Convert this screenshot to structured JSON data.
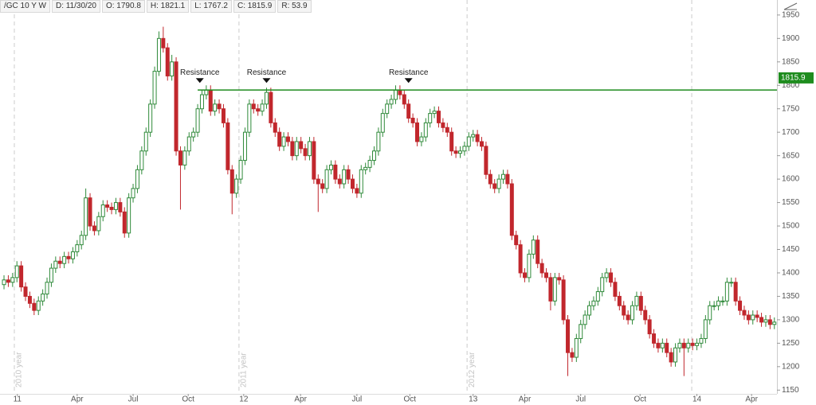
{
  "header": [
    "/GC 10 Y W",
    "D: 11/30/20",
    "O: 1790.8",
    "H: 1821.1",
    "L: 1767.2",
    "C: 1815.9",
    "R: 53.9"
  ],
  "chart_data": {
    "type": "candlestick",
    "up_color": "#2f8a3a",
    "down_color": "#c1272d",
    "ylim": [
      1142,
      1982
    ],
    "yticks": [
      1150,
      1200,
      1250,
      1300,
      1350,
      1400,
      1450,
      1500,
      1550,
      1600,
      1650,
      1700,
      1750,
      1800,
      1850,
      1900,
      1950
    ],
    "xlim": [
      -0.93,
      179.6
    ],
    "xticks": [
      {
        "value": 3.1,
        "label": "11"
      },
      {
        "value": 17,
        "label": "Apr"
      },
      {
        "value": 30,
        "label": "Jul"
      },
      {
        "value": 42.8,
        "label": "Oct"
      },
      {
        "value": 55.7,
        "label": "12"
      },
      {
        "value": 68.9,
        "label": "Apr"
      },
      {
        "value": 82,
        "label": "Jul"
      },
      {
        "value": 94.3,
        "label": "Oct"
      },
      {
        "value": 109,
        "label": "13"
      },
      {
        "value": 121,
        "label": "Apr"
      },
      {
        "value": 134,
        "label": "Jul"
      },
      {
        "value": 147.8,
        "label": "Oct"
      },
      {
        "value": 161,
        "label": "14"
      },
      {
        "value": 173.7,
        "label": "Apr"
      }
    ],
    "year_lines": [
      {
        "value": 2.4,
        "label": "2010 year"
      },
      {
        "value": 54.6,
        "label": "2011 year"
      },
      {
        "value": 107.6,
        "label": "2012 year"
      },
      {
        "value": 159.8
      }
    ],
    "resistance": {
      "value": 1790,
      "start": 45,
      "color": "#1e8c1e"
    },
    "annotations": [
      {
        "text": "Resistance",
        "x": 45.5,
        "y": 1805
      },
      {
        "text": "Resistance",
        "x": 61,
        "y": 1805
      },
      {
        "text": "Resistance",
        "x": 94,
        "y": 1805
      }
    ],
    "last_price": 1815.9,
    "open": [
      1375,
      1385,
      1380,
      1390,
      1415,
      1370,
      1350,
      1335,
      1320,
      1340,
      1355,
      1380,
      1410,
      1425,
      1420,
      1435,
      1430,
      1445,
      1460,
      1480,
      1560,
      1500,
      1490,
      1520,
      1545,
      1540,
      1535,
      1550,
      1530,
      1485,
      1560,
      1580,
      1620,
      1660,
      1700,
      1760,
      1830,
      1900,
      1880,
      1820,
      1850,
      1660,
      1630,
      1660,
      1690,
      1700,
      1750,
      1780,
      1790,
      1745,
      1760,
      1750,
      1720,
      1620,
      1570,
      1600,
      1640,
      1700,
      1760,
      1750,
      1745,
      1760,
      1785,
      1720,
      1700,
      1670,
      1690,
      1680,
      1650,
      1680,
      1665,
      1650,
      1680,
      1600,
      1590,
      1580,
      1620,
      1630,
      1600,
      1590,
      1620,
      1600,
      1580,
      1570,
      1620,
      1625,
      1640,
      1660,
      1700,
      1740,
      1760,
      1770,
      1790,
      1780,
      1760,
      1730,
      1720,
      1680,
      1690,
      1720,
      1740,
      1745,
      1720,
      1710,
      1700,
      1660,
      1655,
      1660,
      1670,
      1690,
      1695,
      1680,
      1670,
      1610,
      1590,
      1580,
      1600,
      1610,
      1590,
      1480,
      1460,
      1400,
      1390,
      1440,
      1470,
      1420,
      1400,
      1390,
      1340,
      1390,
      1385,
      1300,
      1230,
      1220,
      1260,
      1290,
      1310,
      1330,
      1340,
      1360,
      1390,
      1400,
      1380,
      1350,
      1330,
      1310,
      1300,
      1330,
      1350,
      1320,
      1300,
      1270,
      1250,
      1240,
      1250,
      1230,
      1210,
      1240,
      1250,
      1240,
      1250,
      1245,
      1250,
      1260,
      1300,
      1330,
      1330,
      1340,
      1340,
      1380,
      1380,
      1340,
      1320,
      1310,
      1300,
      1310,
      1305,
      1295,
      1300,
      1290
    ],
    "high": [
      1395,
      1395,
      1400,
      1425,
      1425,
      1380,
      1360,
      1345,
      1350,
      1365,
      1390,
      1420,
      1435,
      1435,
      1445,
      1445,
      1455,
      1470,
      1490,
      1580,
      1570,
      1510,
      1530,
      1555,
      1555,
      1550,
      1560,
      1560,
      1540,
      1570,
      1590,
      1630,
      1670,
      1710,
      1770,
      1840,
      1915,
      1925,
      1890,
      1865,
      1860,
      1670,
      1670,
      1700,
      1710,
      1760,
      1790,
      1800,
      1800,
      1770,
      1770,
      1760,
      1730,
      1630,
      1610,
      1650,
      1710,
      1770,
      1770,
      1760,
      1770,
      1795,
      1795,
      1730,
      1710,
      1700,
      1700,
      1690,
      1690,
      1690,
      1675,
      1690,
      1690,
      1610,
      1600,
      1630,
      1640,
      1640,
      1610,
      1630,
      1630,
      1610,
      1590,
      1630,
      1635,
      1650,
      1670,
      1710,
      1750,
      1770,
      1780,
      1800,
      1800,
      1790,
      1770,
      1740,
      1730,
      1700,
      1730,
      1750,
      1755,
      1755,
      1730,
      1720,
      1710,
      1670,
      1670,
      1680,
      1700,
      1705,
      1705,
      1690,
      1680,
      1620,
      1600,
      1610,
      1620,
      1620,
      1600,
      1490,
      1470,
      1410,
      1450,
      1480,
      1480,
      1430,
      1410,
      1400,
      1400,
      1400,
      1395,
      1310,
      1240,
      1270,
      1300,
      1320,
      1340,
      1350,
      1370,
      1400,
      1410,
      1410,
      1390,
      1360,
      1340,
      1320,
      1340,
      1360,
      1360,
      1330,
      1310,
      1280,
      1260,
      1260,
      1260,
      1240,
      1250,
      1260,
      1260,
      1260,
      1260,
      1260,
      1270,
      1310,
      1340,
      1340,
      1350,
      1350,
      1390,
      1390,
      1390,
      1350,
      1330,
      1320,
      1320,
      1320,
      1315,
      1310,
      1310,
      1305
    ],
    "low": [
      1365,
      1370,
      1370,
      1380,
      1360,
      1340,
      1325,
      1310,
      1310,
      1330,
      1345,
      1370,
      1400,
      1410,
      1410,
      1420,
      1420,
      1435,
      1450,
      1470,
      1490,
      1480,
      1480,
      1510,
      1530,
      1525,
      1525,
      1520,
      1475,
      1475,
      1550,
      1570,
      1610,
      1650,
      1690,
      1750,
      1820,
      1870,
      1810,
      1810,
      1650,
      1535,
      1620,
      1650,
      1680,
      1690,
      1740,
      1770,
      1735,
      1735,
      1740,
      1710,
      1610,
      1525,
      1560,
      1590,
      1630,
      1690,
      1740,
      1735,
      1735,
      1750,
      1710,
      1690,
      1660,
      1660,
      1670,
      1640,
      1640,
      1655,
      1640,
      1640,
      1590,
      1530,
      1570,
      1570,
      1610,
      1590,
      1580,
      1580,
      1590,
      1570,
      1560,
      1560,
      1610,
      1615,
      1630,
      1650,
      1690,
      1730,
      1750,
      1760,
      1770,
      1750,
      1720,
      1710,
      1670,
      1670,
      1680,
      1710,
      1730,
      1710,
      1700,
      1690,
      1650,
      1645,
      1645,
      1650,
      1660,
      1680,
      1670,
      1660,
      1600,
      1580,
      1570,
      1570,
      1590,
      1580,
      1470,
      1450,
      1390,
      1380,
      1380,
      1430,
      1410,
      1390,
      1380,
      1320,
      1330,
      1375,
      1290,
      1180,
      1210,
      1210,
      1250,
      1280,
      1300,
      1320,
      1330,
      1350,
      1380,
      1370,
      1340,
      1320,
      1300,
      1290,
      1290,
      1320,
      1310,
      1290,
      1260,
      1240,
      1230,
      1230,
      1220,
      1200,
      1200,
      1230,
      1180,
      1230,
      1235,
      1235,
      1240,
      1250,
      1290,
      1320,
      1320,
      1330,
      1330,
      1370,
      1330,
      1310,
      1300,
      1290,
      1290,
      1295,
      1285,
      1285,
      1280,
      1280
    ],
    "close": [
      1385,
      1380,
      1390,
      1415,
      1370,
      1350,
      1335,
      1320,
      1340,
      1355,
      1380,
      1410,
      1425,
      1420,
      1435,
      1430,
      1445,
      1460,
      1480,
      1560,
      1500,
      1490,
      1520,
      1545,
      1540,
      1535,
      1550,
      1530,
      1485,
      1560,
      1580,
      1620,
      1660,
      1700,
      1760,
      1830,
      1900,
      1880,
      1820,
      1850,
      1660,
      1630,
      1660,
      1690,
      1700,
      1750,
      1780,
      1790,
      1745,
      1760,
      1750,
      1720,
      1620,
      1570,
      1600,
      1640,
      1700,
      1760,
      1750,
      1745,
      1760,
      1785,
      1720,
      1700,
      1670,
      1690,
      1680,
      1650,
      1680,
      1665,
      1650,
      1680,
      1600,
      1590,
      1580,
      1620,
      1630,
      1600,
      1590,
      1620,
      1600,
      1580,
      1570,
      1620,
      1625,
      1640,
      1660,
      1700,
      1740,
      1760,
      1770,
      1790,
      1780,
      1760,
      1730,
      1720,
      1680,
      1690,
      1720,
      1740,
      1745,
      1720,
      1710,
      1700,
      1660,
      1655,
      1660,
      1670,
      1690,
      1695,
      1680,
      1670,
      1610,
      1590,
      1580,
      1600,
      1610,
      1590,
      1480,
      1460,
      1400,
      1390,
      1440,
      1470,
      1420,
      1400,
      1390,
      1340,
      1390,
      1385,
      1300,
      1230,
      1220,
      1260,
      1290,
      1310,
      1330,
      1340,
      1360,
      1390,
      1400,
      1380,
      1350,
      1330,
      1310,
      1300,
      1330,
      1350,
      1320,
      1300,
      1270,
      1250,
      1240,
      1250,
      1230,
      1210,
      1240,
      1250,
      1240,
      1250,
      1245,
      1250,
      1260,
      1300,
      1330,
      1330,
      1340,
      1340,
      1380,
      1380,
      1340,
      1320,
      1310,
      1300,
      1310,
      1305,
      1295,
      1300,
      1290,
      1295
    ]
  }
}
